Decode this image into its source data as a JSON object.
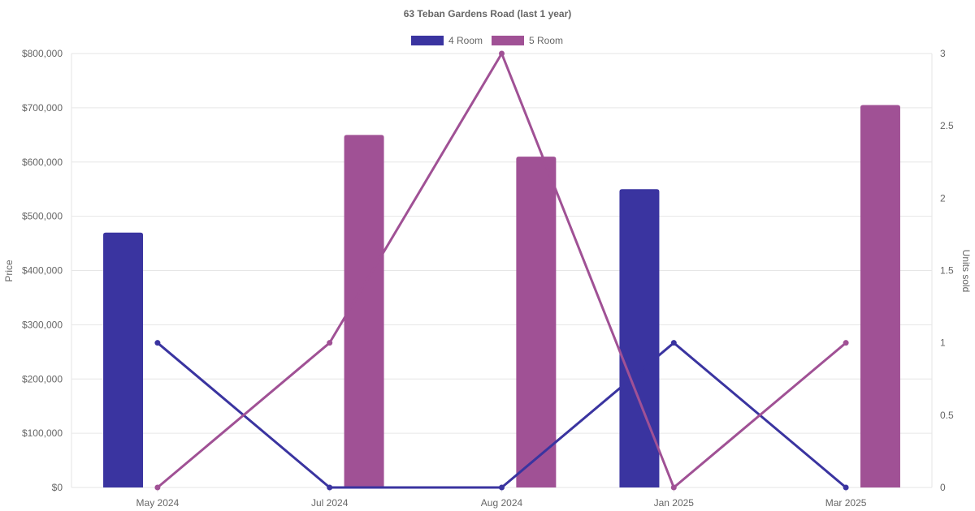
{
  "chart_data": {
    "type": "bar",
    "title": "63 Teban Gardens Road (last 1 year)",
    "categories": [
      "May 2024",
      "Jul 2024",
      "Aug 2024",
      "Jan 2025",
      "Mar 2025"
    ],
    "bar_series": [
      {
        "name": "4 Room",
        "color": "#3a34a0",
        "values": [
          470000,
          null,
          null,
          550000,
          null
        ]
      },
      {
        "name": "5 Room",
        "color": "#a05195",
        "values": [
          null,
          650000,
          610000,
          null,
          705000
        ]
      }
    ],
    "line_series": [
      {
        "name": "4 Room",
        "color": "#3a34a0",
        "values": [
          1,
          0,
          0,
          1,
          0
        ]
      },
      {
        "name": "5 Room",
        "color": "#a05195",
        "values": [
          0,
          1,
          3,
          0,
          1
        ]
      }
    ],
    "y_left": {
      "label": "Price",
      "lim": [
        0,
        800000
      ],
      "ticks": [
        "$0",
        "$100,000",
        "$200,000",
        "$300,000",
        "$400,000",
        "$500,000",
        "$600,000",
        "$700,000",
        "$800,000"
      ]
    },
    "y_right": {
      "label": "Units sold",
      "lim": [
        0,
        3
      ],
      "ticks": [
        "0",
        "0.5",
        "1",
        "1.5",
        "2",
        "2.5",
        "3"
      ]
    },
    "legend": {
      "placement": "top",
      "items": [
        {
          "name": "4 Room",
          "color": "#3a34a0"
        },
        {
          "name": "5 Room",
          "color": "#a05195"
        }
      ]
    },
    "grid": true
  }
}
